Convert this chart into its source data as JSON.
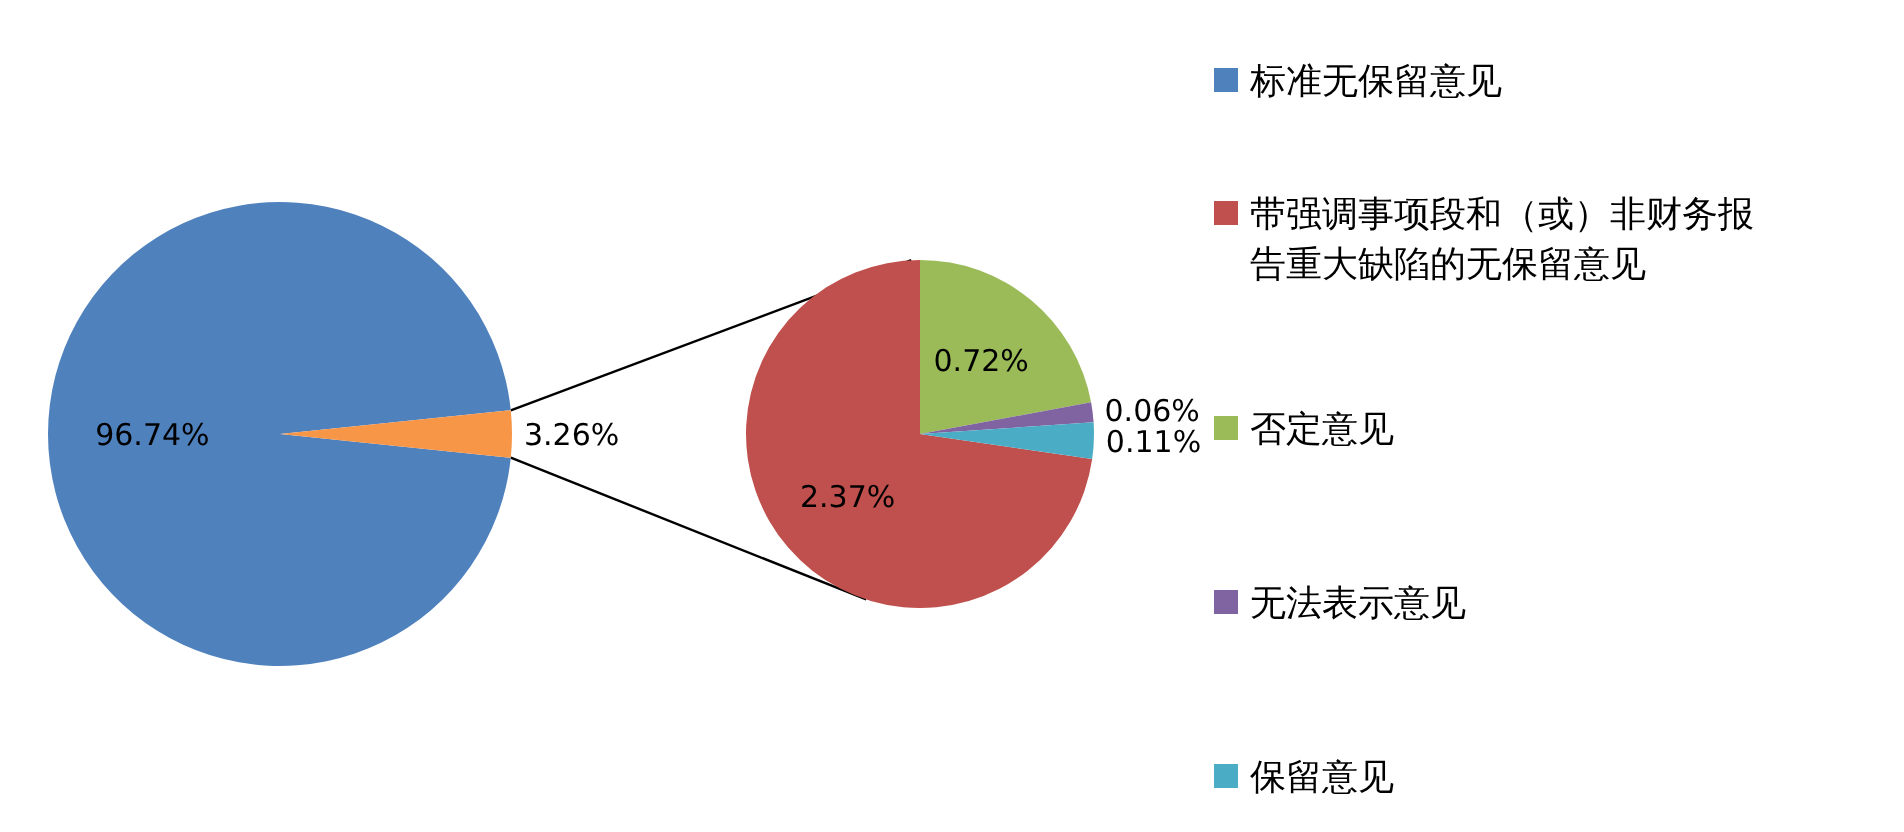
{
  "chart_data": [
    {
      "type": "pie",
      "categories": [
        "标准无保留意见",
        null
      ],
      "values": [
        96.74,
        3.26
      ],
      "colors": [
        "#4f81bd",
        "#f79646"
      ],
      "value_labels": [
        "96.74%",
        "3.26%"
      ],
      "legend": "right"
    },
    {
      "type": "pie",
      "categories": [
        "带强调事项段和（或）非财务报告重大缺陷的无保留意见",
        "否定意见",
        "无法表示意见",
        "保留意见"
      ],
      "values": [
        2.37,
        0.72,
        0.06,
        0.11
      ],
      "colors": [
        "#c0504d",
        "#9bbb59",
        "#8064a2",
        "#4bacc6"
      ],
      "value_labels": [
        "2.37%",
        "0.72%",
        "0.06%",
        "0.11%"
      ],
      "legend": "right"
    }
  ]
}
